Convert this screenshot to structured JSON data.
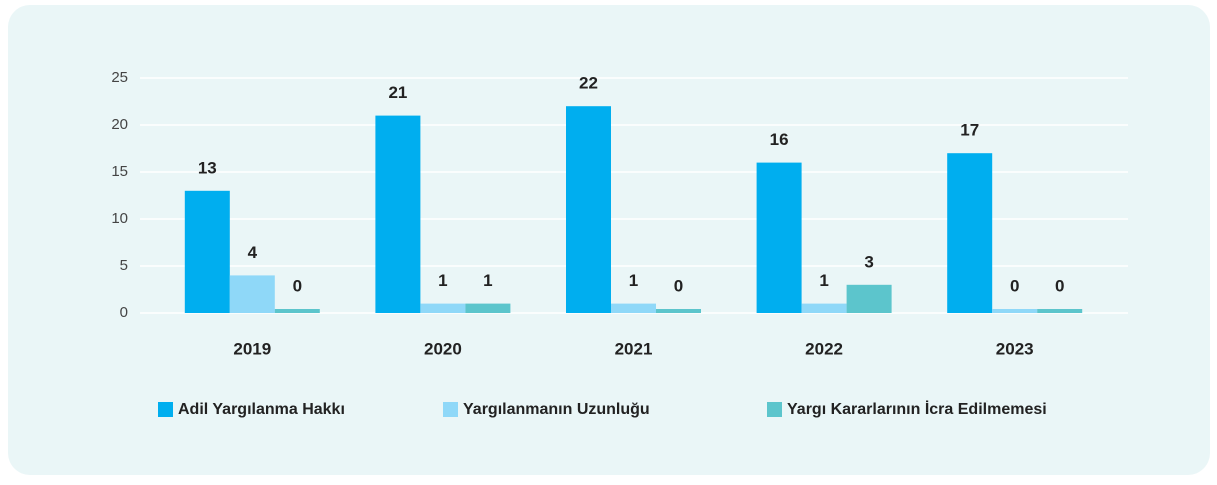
{
  "chart_data": {
    "type": "bar",
    "categories": [
      "2019",
      "2020",
      "2021",
      "2022",
      "2023"
    ],
    "series": [
      {
        "name": "Adil Yargılanma Hakkı",
        "color": "#00aeef",
        "values": [
          13,
          21,
          22,
          16,
          17
        ]
      },
      {
        "name": "Yargılanmanın Uzunluğu",
        "color": "#8fd8f8",
        "values": [
          4,
          1,
          1,
          1,
          0
        ]
      },
      {
        "name": "Yargı Kararlarının İcra Edilmemesi",
        "color": "#5cc5cc",
        "values": [
          0,
          1,
          0,
          3,
          0
        ]
      }
    ],
    "ylim": [
      0,
      25
    ],
    "yticks": [
      0,
      5,
      10,
      15,
      20,
      25
    ],
    "grid": true,
    "legend": "bottom"
  }
}
